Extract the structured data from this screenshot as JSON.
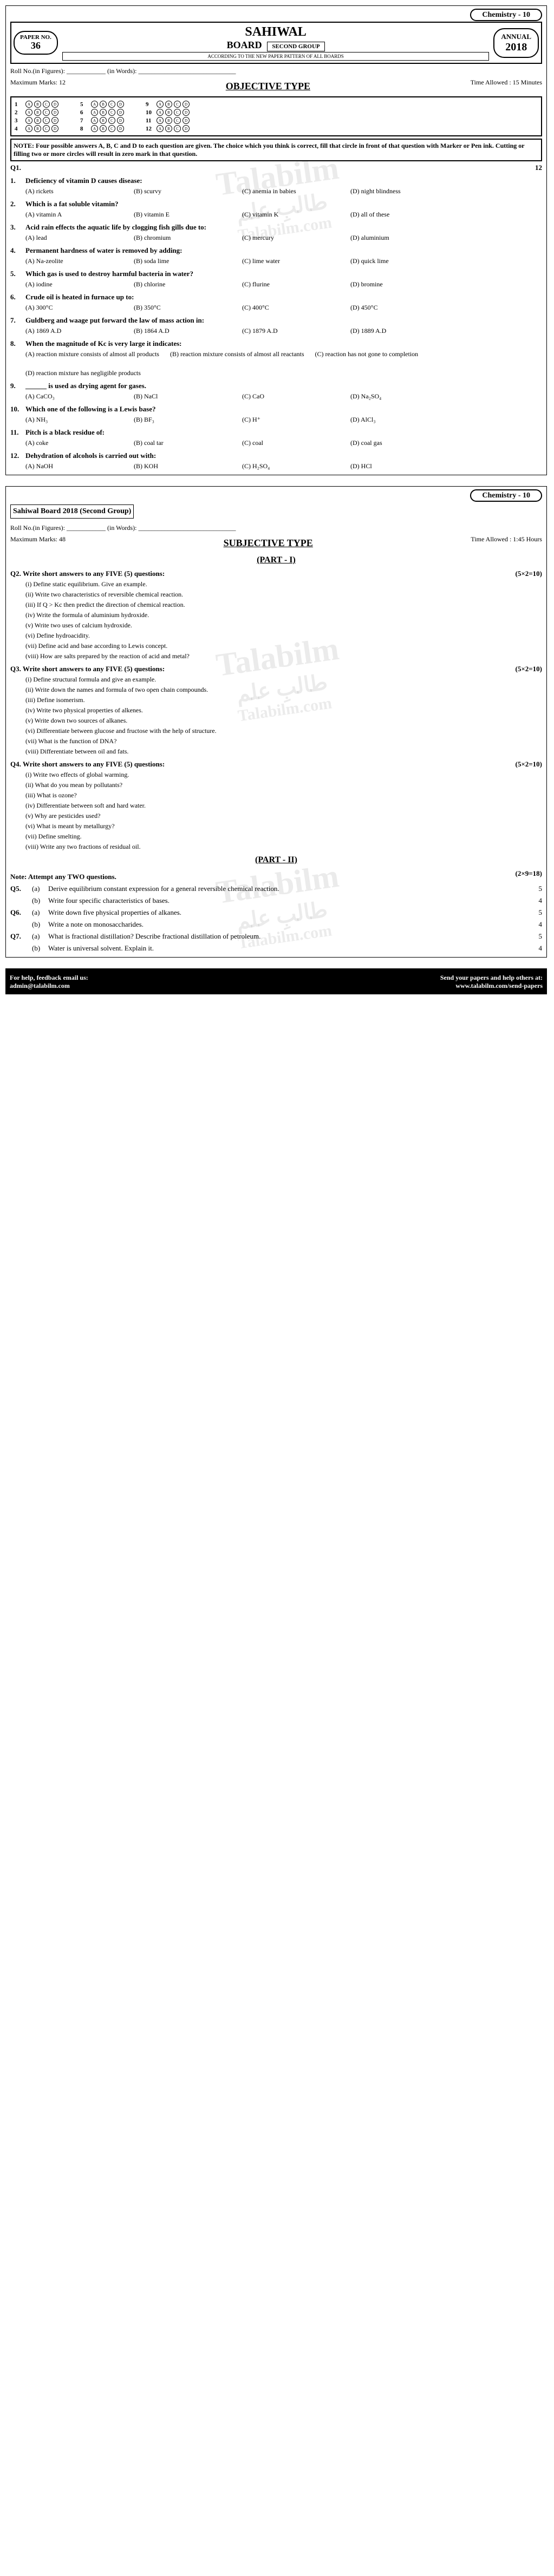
{
  "subject_label": "Chemistry - 10",
  "paper_no_label": "PAPER NO.",
  "paper_no": "36",
  "board_name": "SAHIWAL",
  "board_sub": "BOARD",
  "group": "SECOND GROUP",
  "pattern_note": "ACCORDING TO THE NEW PAPER PATTERN OF ALL BOARDS",
  "annual_label": "ANNUAL",
  "year": "2018",
  "roll_label": "Roll No.(in Figures): ____________ (in Words): ______________________________",
  "obj_marks": "Maximum Marks: 12",
  "obj_time": "Time Allowed : 15 Minutes",
  "obj_title": "OBJECTIVE TYPE",
  "bubble_rows": [
    "1",
    "2",
    "3",
    "4",
    "5",
    "6",
    "7",
    "8",
    "9",
    "10",
    "11",
    "12"
  ],
  "bubble_letters": [
    "A",
    "B",
    "C",
    "D"
  ],
  "note_text": "NOTE: Four possible answers A, B, C and D to each question are given. The choice which you think is correct, fill that circle in front of that question with Marker or Pen ink. Cutting or filling two or more circles will result in zero mark in that question.",
  "q1_label": "Q1.",
  "q1_marks": "12",
  "mcqs": [
    {
      "n": "1.",
      "stem": "Deficiency of vitamin D causes disease:",
      "opts": [
        "(A) rickets",
        "(B) scurvy",
        "(C) anemia in babies",
        "(D) night blindness"
      ]
    },
    {
      "n": "2.",
      "stem": "Which is a fat soluble vitamin?",
      "opts": [
        "(A) vitamin A",
        "(B) vitamin E",
        "(C) vitamin K",
        "(D) all of these"
      ]
    },
    {
      "n": "3.",
      "stem": "Acid rain effects the aquatic life by clogging fish gills due to:",
      "opts": [
        "(A) lead",
        "(B) chromium",
        "(C) mercury",
        "(D) aluminium"
      ]
    },
    {
      "n": "4.",
      "stem": "Permanent hardness of water is removed by adding:",
      "opts": [
        "(A) Na-zeolite",
        "(B) soda lime",
        "(C) lime water",
        "(D) quick lime"
      ]
    },
    {
      "n": "5.",
      "stem": "Which gas is used to destroy harmful bacteria in water?",
      "opts": [
        "(A) iodine",
        "(B) chlorine",
        "(C) flurine",
        "(D) bromine"
      ]
    },
    {
      "n": "6.",
      "stem": "Crude oil is heated in furnace up to:",
      "opts": [
        "(A) 300°C",
        "(B) 350°C",
        "(C) 400°C",
        "(D) 450°C"
      ]
    },
    {
      "n": "7.",
      "stem": "Guldberg and waage put forward the law of mass action in:",
      "opts": [
        "(A) 1869 A.D",
        "(B) 1864 A.D",
        "(C) 1879 A.D",
        "(D) 1889 A.D"
      ]
    },
    {
      "n": "8.",
      "stem": "When the magnitude of Kc is very large it indicates:",
      "opts": [
        "(A) reaction mixture consists of almost all products",
        "(B) reaction mixture consists of almost all reactants",
        "(C) reaction has not gone to completion",
        "(D) reaction mixture has negligible products"
      ]
    },
    {
      "n": "9.",
      "stem": "______ is used as drying agent for gases.",
      "opts": [
        "(A) CaCO₃",
        "(B) NaCl",
        "(C) CaO",
        "(D) Na₂SO₄"
      ]
    },
    {
      "n": "10.",
      "stem": "Which one of the following is a Lewis base?",
      "opts": [
        "(A) NH₃",
        "(B) BF₃",
        "(C) H⁺",
        "(D) AlCl₃"
      ]
    },
    {
      "n": "11.",
      "stem": "Pitch is a black residue of:",
      "opts": [
        "(A) coke",
        "(B) coal tar",
        "(C) coal",
        "(D) coal gas"
      ]
    },
    {
      "n": "12.",
      "stem": "Dehydration of alcohols is carried out with:",
      "opts": [
        "(A) NaOH",
        "(B) KOH",
        "(C) H₂SO₄",
        "(D) HCl"
      ]
    }
  ],
  "subj_board": "Sahiwal Board 2018 (Second Group)",
  "subj_marks": "Maximum Marks: 48",
  "subj_time": "Time Allowed : 1:45 Hours",
  "subj_title": "SUBJECTIVE TYPE",
  "part1": "(PART - I)",
  "q2": {
    "label": "Q2.",
    "text": "Write short answers to any FIVE (5) questions:",
    "marks": "(5×2=10)",
    "items": [
      "(i) Define static equilibrium. Give an example.",
      "(ii) Write two characteristics of reversible chemical reaction.",
      "(iii) If Q > Kc then predict the direction of chemical reaction.",
      "(iv) Write the formula of aluminium hydroxide.",
      "(v) Write two uses of calcium hydroxide.",
      "(vi) Define hydroacidity.",
      "(vii) Define acid and base according to Lewis concept.",
      "(viii) How are salts prepared by the reaction of acid and metal?"
    ]
  },
  "q3": {
    "label": "Q3.",
    "text": "Write short answers to any FIVE (5) questions:",
    "marks": "(5×2=10)",
    "items": [
      "(i) Define structural formula and give an example.",
      "(ii) Write down the names and formula of two open chain compounds.",
      "(iii) Define isomerism.",
      "(iv) Write two physical properties of alkenes.",
      "(v) Write down two sources of alkanes.",
      "(vi) Differentiate between glucose and fructose with the help of structure.",
      "(vii) What is the function of DNA?",
      "(viii) Differentiate between oil and fats."
    ]
  },
  "q4": {
    "label": "Q4.",
    "text": "Write short answers to any FIVE (5) questions:",
    "marks": "(5×2=10)",
    "items": [
      "(i) Write two effects of global warming.",
      "(ii) What do you mean by pollutants?",
      "(iii) What is ozone?",
      "(iv) Differentiate between soft and hard water.",
      "(v) Why are pesticides used?",
      "(vi) What is meant by metallurgy?",
      "(vii) Define smelting.",
      "(viii) Write any two fractions of residual oil."
    ]
  },
  "part2": "(PART - II)",
  "p2_note": "Note: Attempt any TWO questions.",
  "p2_marks": "(2×9=18)",
  "p2_questions": [
    {
      "n": "Q5.",
      "l": "(a)",
      "t": "Derive equilibrium constant expression for a general reversible chemical reaction.",
      "m": "5"
    },
    {
      "n": "",
      "l": "(b)",
      "t": "Write four specific characteristics of bases.",
      "m": "4"
    },
    {
      "n": "Q6.",
      "l": "(a)",
      "t": "Write down five physical properties of alkanes.",
      "m": "5"
    },
    {
      "n": "",
      "l": "(b)",
      "t": "Write a note on monosaccharides.",
      "m": "4"
    },
    {
      "n": "Q7.",
      "l": "(a)",
      "t": "What is fractional distillation? Describe fractional distillation of petroleum.",
      "m": "5"
    },
    {
      "n": "",
      "l": "(b)",
      "t": "Water is universal solvent. Explain it.",
      "m": "4"
    }
  ],
  "watermark_text": "Talabilm",
  "watermark_sub": "طالبِ علم",
  "watermark_url": "Talabilm.com",
  "footer_help": "For help, feedback email us:",
  "footer_email": "admin@talabilm.com",
  "footer_send": "Send your papers and help others at:",
  "footer_url": "www.talabilm.com/send-papers"
}
